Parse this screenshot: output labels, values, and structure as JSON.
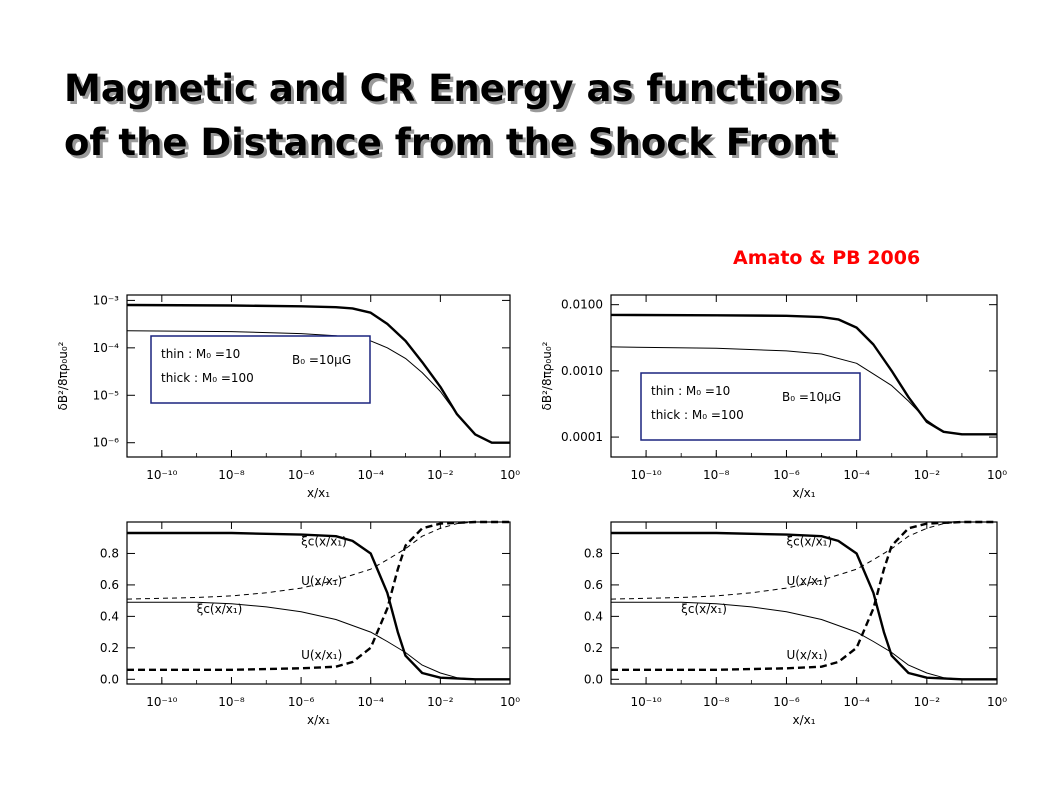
{
  "slide": {
    "title_line1": "Magnetic and CR Energy as functions",
    "title_line2": "of the Distance from the Shock Front",
    "citation": "Amato & PB 2006"
  },
  "colors": {
    "citation": "#ff0000",
    "legend_border": "#1a237e",
    "title_shadow": "#9a9a9a"
  },
  "chart_data": [
    {
      "id": "top-left",
      "type": "line",
      "xscale": "log",
      "yscale": "log",
      "xlim": [
        1e-11,
        1
      ],
      "ylim": [
        5e-07,
        0.0013
      ],
      "xlabel": "x/x₁",
      "ylabel": "δB²/8πρ₀u₀²",
      "xticks": [
        {
          "v": 1e-10,
          "label": "10⁻¹⁰"
        },
        {
          "v": 1e-08,
          "label": "10⁻⁸"
        },
        {
          "v": 1e-06,
          "label": "10⁻⁶"
        },
        {
          "v": 0.0001,
          "label": "10⁻⁴"
        },
        {
          "v": 0.01,
          "label": "10⁻²"
        },
        {
          "v": 1,
          "label": "10⁰"
        }
      ],
      "yticks": [
        {
          "v": 0.001,
          "label": "10⁻³"
        },
        {
          "v": 0.0001,
          "label": "10⁻⁴"
        },
        {
          "v": 1e-05,
          "label": "10⁻⁵"
        },
        {
          "v": 1e-06,
          "label": "10⁻⁶"
        }
      ],
      "legend": {
        "lines": [
          "thin : M₀ =10",
          "thick : M₀ =100"
        ],
        "field": "B₀ =10μG"
      },
      "series": [
        {
          "style": "thick",
          "x": [
            1e-11,
            1e-08,
            1e-06,
            1e-05,
            3e-05,
            0.0001,
            0.0003,
            0.001,
            0.003,
            0.01,
            0.03,
            0.1,
            0.3,
            1
          ],
          "y": [
            0.0008,
            0.00078,
            0.00075,
            0.00072,
            0.00068,
            0.00055,
            0.00032,
            0.00014,
            5e-05,
            1.5e-05,
            4e-06,
            1.5e-06,
            1e-06,
            1e-06
          ]
        },
        {
          "style": "thin",
          "x": [
            1e-11,
            1e-08,
            1e-06,
            1e-05,
            0.0001,
            0.0003,
            0.001,
            0.003,
            0.01,
            0.03,
            0.1,
            0.3,
            1
          ],
          "y": [
            0.00023,
            0.00022,
            0.0002,
            0.00018,
            0.00014,
            0.0001,
            6e-05,
            3e-05,
            1.2e-05,
            4e-06,
            1.5e-06,
            1e-06,
            1e-06
          ]
        }
      ]
    },
    {
      "id": "top-right",
      "type": "line",
      "xscale": "log",
      "yscale": "log",
      "xlim": [
        1e-11,
        1
      ],
      "ylim": [
        5e-05,
        0.014
      ],
      "xlabel": "x/x₁",
      "ylabel": "δB²/8πρ₀u₀²",
      "xticks": [
        {
          "v": 1e-10,
          "label": "10⁻¹⁰"
        },
        {
          "v": 1e-08,
          "label": "10⁻⁸"
        },
        {
          "v": 1e-06,
          "label": "10⁻⁶"
        },
        {
          "v": 0.0001,
          "label": "10⁻⁴"
        },
        {
          "v": 0.01,
          "label": "10⁻²"
        },
        {
          "v": 1,
          "label": "10⁰"
        }
      ],
      "yticks": [
        {
          "v": 0.01,
          "label": "0.0100"
        },
        {
          "v": 0.001,
          "label": "0.0010"
        },
        {
          "v": 0.0001,
          "label": "0.0001"
        }
      ],
      "legend": {
        "lines": [
          "thin : M₀ =10",
          "thick : M₀ =100"
        ],
        "field": "B₀ =10μG"
      },
      "series": [
        {
          "style": "thick",
          "x": [
            1e-11,
            1e-08,
            1e-06,
            1e-05,
            3e-05,
            0.0001,
            0.0003,
            0.001,
            0.003,
            0.01,
            0.03,
            0.1,
            1
          ],
          "y": [
            0.007,
            0.0069,
            0.0068,
            0.0065,
            0.006,
            0.0045,
            0.0025,
            0.001,
            0.0004,
            0.00017,
            0.00012,
            0.00011,
            0.00011
          ]
        },
        {
          "style": "thin",
          "x": [
            1e-11,
            1e-08,
            1e-06,
            1e-05,
            0.0001,
            0.0003,
            0.001,
            0.003,
            0.01,
            0.03,
            0.1,
            1
          ],
          "y": [
            0.0023,
            0.0022,
            0.002,
            0.0018,
            0.0013,
            0.0009,
            0.0006,
            0.00035,
            0.00018,
            0.00012,
            0.00011,
            0.00011
          ]
        }
      ]
    },
    {
      "id": "bottom-left",
      "type": "line",
      "xscale": "log",
      "yscale": "linear",
      "xlim": [
        1e-11,
        1
      ],
      "ylim": [
        -0.03,
        1.0
      ],
      "xlabel": "x/x₁",
      "ylabel": "",
      "xticks": [
        {
          "v": 1e-10,
          "label": "10⁻¹⁰"
        },
        {
          "v": 1e-08,
          "label": "10⁻⁸"
        },
        {
          "v": 1e-06,
          "label": "10⁻⁶"
        },
        {
          "v": 0.0001,
          "label": "10⁻⁴"
        },
        {
          "v": 0.01,
          "label": "10⁻²"
        },
        {
          "v": 1,
          "label": "10⁰"
        }
      ],
      "yticks": [
        {
          "v": 0,
          "label": "0.0"
        },
        {
          "v": 0.2,
          "label": "0.2"
        },
        {
          "v": 0.4,
          "label": "0.4"
        },
        {
          "v": 0.6,
          "label": "0.6"
        },
        {
          "v": 0.8,
          "label": "0.8"
        }
      ],
      "annotations": [
        {
          "text": "ξc(x/x₁)",
          "x": 1e-06,
          "y": 0.85
        },
        {
          "text": "U(x/x₁)",
          "x": 1e-06,
          "y": 0.6
        },
        {
          "text": "ξc(x/x₁)",
          "x": 1e-09,
          "y": 0.42
        },
        {
          "text": "U(x/x₁)",
          "x": 1e-06,
          "y": 0.13
        }
      ],
      "series": [
        {
          "style": "thick",
          "x": [
            1e-11,
            1e-08,
            1e-06,
            1e-05,
            3e-05,
            0.0001,
            0.0003,
            0.0006,
            0.001,
            0.003,
            0.01,
            0.1,
            1
          ],
          "y": [
            0.93,
            0.93,
            0.92,
            0.91,
            0.88,
            0.8,
            0.55,
            0.3,
            0.15,
            0.04,
            0.01,
            0,
            0
          ]
        },
        {
          "style": "thick-dashed",
          "x": [
            1e-11,
            1e-08,
            1e-06,
            1e-05,
            3e-05,
            0.0001,
            0.0003,
            0.0006,
            0.001,
            0.003,
            0.01,
            0.1,
            1
          ],
          "y": [
            0.06,
            0.06,
            0.07,
            0.08,
            0.11,
            0.2,
            0.45,
            0.7,
            0.85,
            0.96,
            0.99,
            1,
            1
          ]
        },
        {
          "style": "thin",
          "x": [
            1e-11,
            1e-09,
            1e-08,
            1e-07,
            1e-06,
            1e-05,
            0.0001,
            0.0003,
            0.001,
            0.003,
            0.01,
            0.03,
            0.1,
            1
          ],
          "y": [
            0.49,
            0.49,
            0.48,
            0.46,
            0.43,
            0.38,
            0.3,
            0.24,
            0.17,
            0.09,
            0.04,
            0.01,
            0,
            0
          ]
        },
        {
          "style": "thin-dashed",
          "x": [
            1e-11,
            1e-09,
            1e-08,
            1e-07,
            1e-06,
            1e-05,
            0.0001,
            0.0003,
            0.001,
            0.003,
            0.01,
            0.03,
            0.1,
            1
          ],
          "y": [
            0.51,
            0.52,
            0.53,
            0.55,
            0.58,
            0.63,
            0.7,
            0.76,
            0.83,
            0.91,
            0.96,
            0.99,
            1,
            1
          ]
        }
      ]
    },
    {
      "id": "bottom-right",
      "type": "line",
      "xscale": "log",
      "yscale": "linear",
      "xlim": [
        1e-11,
        1
      ],
      "ylim": [
        -0.03,
        1.0
      ],
      "xlabel": "x/x₁",
      "ylabel": "",
      "xticks": [
        {
          "v": 1e-10,
          "label": "10⁻¹⁰"
        },
        {
          "v": 1e-08,
          "label": "10⁻⁸"
        },
        {
          "v": 1e-06,
          "label": "10⁻⁶"
        },
        {
          "v": 0.0001,
          "label": "10⁻⁴"
        },
        {
          "v": 0.01,
          "label": "10⁻²"
        },
        {
          "v": 1,
          "label": "10⁰"
        }
      ],
      "yticks": [
        {
          "v": 0,
          "label": "0.0"
        },
        {
          "v": 0.2,
          "label": "0.2"
        },
        {
          "v": 0.4,
          "label": "0.4"
        },
        {
          "v": 0.6,
          "label": "0.6"
        },
        {
          "v": 0.8,
          "label": "0.8"
        }
      ],
      "annotations": [
        {
          "text": "ξc(x/x₁)",
          "x": 1e-06,
          "y": 0.85
        },
        {
          "text": "U(x/x₁)",
          "x": 1e-06,
          "y": 0.6
        },
        {
          "text": "ξc(x/x₁)",
          "x": 1e-09,
          "y": 0.42
        },
        {
          "text": "U(x/x₁)",
          "x": 1e-06,
          "y": 0.13
        }
      ],
      "series": [
        {
          "style": "thick",
          "x": [
            1e-11,
            1e-08,
            1e-06,
            1e-05,
            3e-05,
            0.0001,
            0.0003,
            0.0006,
            0.001,
            0.003,
            0.01,
            0.1,
            1
          ],
          "y": [
            0.93,
            0.93,
            0.92,
            0.91,
            0.88,
            0.8,
            0.55,
            0.3,
            0.15,
            0.04,
            0.01,
            0,
            0
          ]
        },
        {
          "style": "thick-dashed",
          "x": [
            1e-11,
            1e-08,
            1e-06,
            1e-05,
            3e-05,
            0.0001,
            0.0003,
            0.0006,
            0.001,
            0.003,
            0.01,
            0.1,
            1
          ],
          "y": [
            0.06,
            0.06,
            0.07,
            0.08,
            0.11,
            0.2,
            0.45,
            0.7,
            0.85,
            0.96,
            0.99,
            1,
            1
          ]
        },
        {
          "style": "thin",
          "x": [
            1e-11,
            1e-09,
            1e-08,
            1e-07,
            1e-06,
            1e-05,
            0.0001,
            0.0003,
            0.001,
            0.003,
            0.01,
            0.03,
            0.1,
            1
          ],
          "y": [
            0.49,
            0.49,
            0.48,
            0.46,
            0.43,
            0.38,
            0.3,
            0.24,
            0.17,
            0.09,
            0.04,
            0.01,
            0,
            0
          ]
        },
        {
          "style": "thin-dashed",
          "x": [
            1e-11,
            1e-09,
            1e-08,
            1e-07,
            1e-06,
            1e-05,
            0.0001,
            0.0003,
            0.001,
            0.003,
            0.01,
            0.03,
            0.1,
            1
          ],
          "y": [
            0.51,
            0.52,
            0.53,
            0.55,
            0.58,
            0.63,
            0.7,
            0.76,
            0.83,
            0.91,
            0.96,
            0.99,
            1,
            1
          ]
        }
      ]
    }
  ]
}
